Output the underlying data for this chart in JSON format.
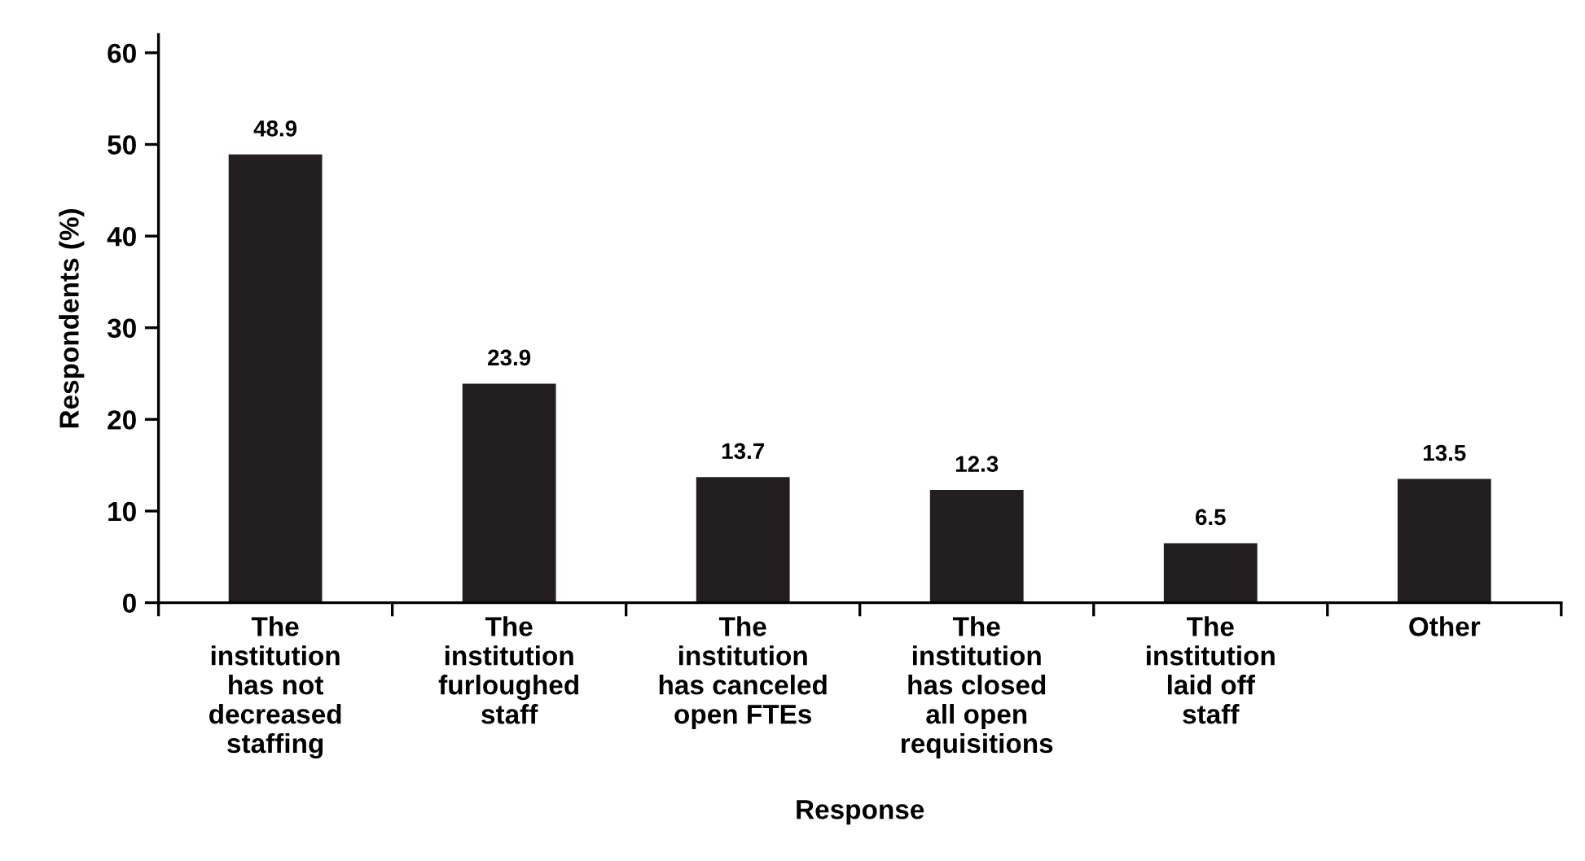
{
  "chart_data": {
    "type": "bar",
    "xlabel": "Response",
    "ylabel": "Respondents (%)",
    "categories": [
      "The\ninstitution\nhas not\ndecreased\nstaffing",
      "The\ninstitution\nfurloughed\nstaff",
      "The\ninstitution\nhas canceled\nopen FTEs",
      "The\ninstitution\nhas closed\nall open\nrequisitions",
      "The\ninstitution\nlaid off\nstaff",
      "Other"
    ],
    "values": [
      48.9,
      23.9,
      13.7,
      12.3,
      6.5,
      13.5
    ],
    "color": "#231f20",
    "ylim": [
      0,
      62
    ],
    "yticks": [
      0,
      10,
      20,
      30,
      40,
      50,
      60
    ],
    "data_labels": true,
    "grid": false
  }
}
